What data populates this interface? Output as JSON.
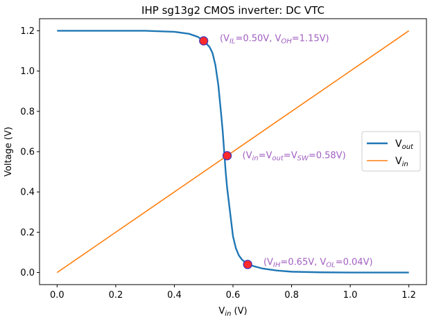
{
  "chart_data": {
    "type": "line",
    "title": "IHP sg13g2 CMOS inverter: DC VTC",
    "xlabel": {
      "base": "V",
      "sub": "in",
      "suffix": " (V)"
    },
    "ylabel": "Voltage (V)",
    "xlim": [
      -0.06,
      1.26
    ],
    "ylim": [
      -0.06,
      1.26
    ],
    "xticks": [
      0.0,
      0.2,
      0.4,
      0.6,
      0.8,
      1.0,
      1.2
    ],
    "yticks": [
      0.0,
      0.2,
      0.4,
      0.6,
      0.8,
      1.0,
      1.2
    ],
    "xtick_labels": [
      "0.0",
      "0.2",
      "0.4",
      "0.6",
      "0.8",
      "1.0",
      "1.2"
    ],
    "ytick_labels": [
      "0.0",
      "0.2",
      "0.4",
      "0.6",
      "0.8",
      "1.0",
      "1.2"
    ],
    "grid": false,
    "legend_position": "center-right",
    "series": [
      {
        "name": {
          "base": "V",
          "sub": "out"
        },
        "color": "#1f77b4",
        "x": [
          0.0,
          0.1,
          0.2,
          0.3,
          0.4,
          0.45,
          0.48,
          0.5,
          0.52,
          0.53,
          0.54,
          0.55,
          0.56,
          0.565,
          0.57,
          0.575,
          0.58,
          0.585,
          0.59,
          0.6,
          0.61,
          0.62,
          0.63,
          0.65,
          0.7,
          0.75,
          0.8,
          0.9,
          1.0,
          1.1,
          1.2
        ],
        "y": [
          1.2,
          1.2,
          1.2,
          1.2,
          1.195,
          1.185,
          1.17,
          1.15,
          1.12,
          1.09,
          1.03,
          0.93,
          0.78,
          0.7,
          0.6,
          0.5,
          0.42,
          0.36,
          0.3,
          0.18,
          0.12,
          0.085,
          0.065,
          0.04,
          0.02,
          0.01,
          0.004,
          0.001,
          0.0,
          0.0,
          0.0
        ]
      },
      {
        "name": {
          "base": "V",
          "sub": "in"
        },
        "color": "#ff7f0e",
        "x": [
          0.0,
          1.2
        ],
        "y": [
          0.0,
          1.2
        ]
      }
    ],
    "markers": [
      {
        "x": 0.5,
        "y": 1.15,
        "face": "#ff2a2a",
        "edge": "#3b2fbf"
      },
      {
        "x": 0.58,
        "y": 0.58,
        "face": "#ff2a2a",
        "edge": "#3b2fbf"
      },
      {
        "x": 0.65,
        "y": 0.04,
        "face": "#ff2a2a",
        "edge": "#3b2fbf"
      }
    ],
    "annotations": [
      {
        "x": 0.555,
        "y": 1.165,
        "color": "#a05fc0",
        "parts": [
          {
            "t": "(V"
          },
          {
            "t": "IL",
            "sub": true
          },
          {
            "t": "=0.50V, V"
          },
          {
            "t": "OH",
            "sub": true
          },
          {
            "t": "=1.15V)"
          }
        ]
      },
      {
        "x": 0.632,
        "y": 0.585,
        "color": "#a05fc0",
        "parts": [
          {
            "t": "(V"
          },
          {
            "t": "in",
            "sub": true
          },
          {
            "t": "=V"
          },
          {
            "t": "out",
            "sub": true
          },
          {
            "t": "=V"
          },
          {
            "t": "SW",
            "sub": true
          },
          {
            "t": "=0.58V)"
          }
        ]
      },
      {
        "x": 0.704,
        "y": 0.055,
        "color": "#a05fc0",
        "parts": [
          {
            "t": "(V"
          },
          {
            "t": "IH",
            "sub": true
          },
          {
            "t": "=0.65V, V"
          },
          {
            "t": "OL",
            "sub": true
          },
          {
            "t": "=0.04V)"
          }
        ]
      }
    ]
  }
}
